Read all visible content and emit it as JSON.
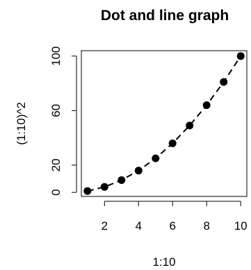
{
  "chart_data": {
    "type": "line",
    "title": "Dot and line graph",
    "xlabel": "1:10",
    "ylabel": "(1:10)^2",
    "x": [
      1,
      2,
      3,
      4,
      5,
      6,
      7,
      8,
      9,
      10
    ],
    "y": [
      1,
      4,
      9,
      16,
      25,
      36,
      49,
      64,
      81,
      100
    ],
    "xticks": [
      2,
      4,
      6,
      8,
      10
    ],
    "yticks": [
      0,
      20,
      60,
      100
    ],
    "xlim": [
      0.64,
      10.36
    ],
    "ylim": [
      -2.96,
      103.96
    ],
    "line_style": "dashed",
    "marker": "filled-circle",
    "grid": false,
    "colors": {
      "marker": "#000000",
      "line": "#000000",
      "axis": "#000000"
    }
  }
}
